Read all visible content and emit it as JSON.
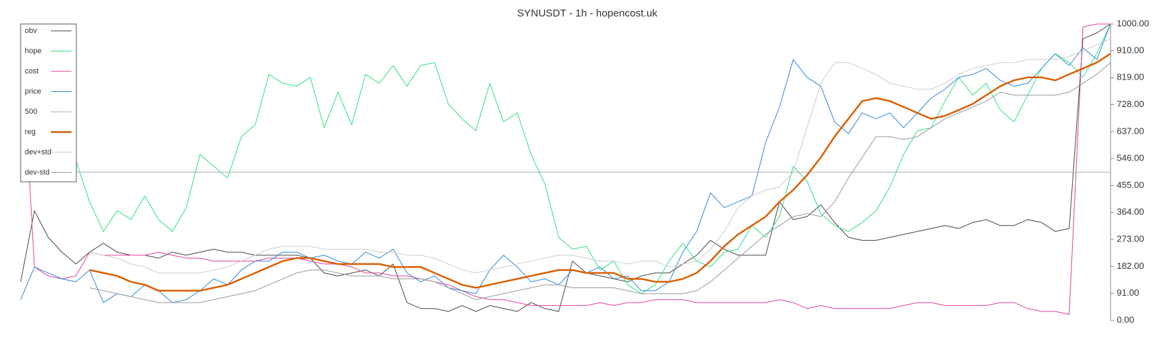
{
  "chart_data": {
    "type": "line",
    "title": "SYNUSDT - 1h - hopencost.uk",
    "ylim": [
      0,
      1000
    ],
    "yticks": [
      {
        "value": 0,
        "label": "0.00"
      },
      {
        "value": 91,
        "label": "91.00"
      },
      {
        "value": 182,
        "label": "182.00"
      },
      {
        "value": 273,
        "label": "273.00"
      },
      {
        "value": 364,
        "label": "364.00"
      },
      {
        "value": 455,
        "label": "455.00"
      },
      {
        "value": 546,
        "label": "546.00"
      },
      {
        "value": 637,
        "label": "637.00"
      },
      {
        "value": 728,
        "label": "728.00"
      },
      {
        "value": 819,
        "label": "819.00"
      },
      {
        "value": 910,
        "label": "910.00"
      },
      {
        "value": 1000,
        "label": "1000.00"
      }
    ],
    "legend": "top-left",
    "series": [
      {
        "name": "obv",
        "color": "#444444",
        "width": 1,
        "values": [
          130,
          370,
          280,
          230,
          190,
          230,
          260,
          230,
          220,
          220,
          210,
          230,
          220,
          230,
          240,
          230,
          230,
          220,
          220,
          220,
          220,
          210,
          160,
          150,
          160,
          170,
          150,
          190,
          60,
          40,
          40,
          30,
          50,
          30,
          50,
          40,
          30,
          60,
          40,
          30,
          200,
          160,
          150,
          140,
          130,
          150,
          160,
          160,
          190,
          220,
          270,
          240,
          220,
          220,
          220,
          400,
          340,
          350,
          390,
          330,
          280,
          270,
          270,
          280,
          290,
          300,
          310,
          320,
          310,
          330,
          340,
          320,
          320,
          340,
          330,
          300,
          310,
          950,
          970,
          1000
        ]
      },
      {
        "name": "hope",
        "color": "#2ee07a",
        "width": 1,
        "values": [
          null,
          null,
          null,
          520,
          540,
          400,
          300,
          370,
          340,
          420,
          340,
          300,
          380,
          560,
          520,
          480,
          620,
          660,
          830,
          800,
          790,
          820,
          650,
          770,
          660,
          830,
          800,
          860,
          790,
          860,
          870,
          730,
          680,
          640,
          800,
          670,
          700,
          560,
          460,
          280,
          240,
          250,
          170,
          200,
          120,
          90,
          120,
          200,
          260,
          200,
          180,
          230,
          240,
          320,
          280,
          350,
          520,
          470,
          360,
          320,
          300,
          330,
          370,
          450,
          560,
          640,
          650,
          740,
          820,
          760,
          800,
          710,
          670,
          760,
          850,
          900,
          870,
          820,
          900,
          1000
        ]
      },
      {
        "name": "cost",
        "color": "#e0409a",
        "width": 1,
        "values": [
          1000,
          180,
          150,
          140,
          150,
          230,
          220,
          220,
          220,
          220,
          230,
          220,
          210,
          210,
          200,
          200,
          200,
          200,
          210,
          210,
          210,
          200,
          190,
          190,
          180,
          160,
          160,
          150,
          150,
          140,
          130,
          120,
          100,
          80,
          70,
          70,
          60,
          50,
          50,
          50,
          50,
          50,
          60,
          50,
          60,
          60,
          70,
          70,
          70,
          60,
          60,
          60,
          60,
          60,
          60,
          70,
          60,
          40,
          50,
          40,
          40,
          40,
          40,
          40,
          50,
          60,
          60,
          50,
          50,
          50,
          50,
          60,
          60,
          40,
          30,
          30,
          20,
          990,
          1000,
          1000
        ]
      },
      {
        "name": "price",
        "color": "#2e86de",
        "width": 1,
        "values": [
          70,
          180,
          160,
          140,
          130,
          170,
          60,
          90,
          80,
          120,
          100,
          60,
          70,
          100,
          140,
          120,
          170,
          200,
          200,
          230,
          230,
          210,
          220,
          200,
          190,
          230,
          210,
          240,
          160,
          130,
          150,
          110,
          100,
          90,
          170,
          220,
          180,
          130,
          140,
          120,
          170,
          160,
          180,
          140,
          150,
          100,
          100,
          130,
          230,
          300,
          430,
          380,
          400,
          420,
          600,
          720,
          880,
          820,
          790,
          670,
          630,
          700,
          680,
          700,
          650,
          700,
          750,
          780,
          820,
          830,
          850,
          810,
          790,
          800,
          850,
          900,
          860,
          920,
          880,
          1000
        ]
      },
      {
        "name": "500",
        "color": "#aaaaaa",
        "width": 1,
        "level": 500
      },
      {
        "name": "reg",
        "color": "#d95f02",
        "width": 2.5,
        "values": [
          null,
          null,
          null,
          null,
          null,
          170,
          160,
          150,
          130,
          120,
          100,
          100,
          100,
          100,
          110,
          120,
          140,
          160,
          180,
          200,
          210,
          210,
          200,
          190,
          190,
          190,
          190,
          180,
          180,
          180,
          160,
          140,
          120,
          110,
          120,
          130,
          140,
          150,
          160,
          170,
          170,
          160,
          160,
          160,
          140,
          140,
          130,
          130,
          140,
          160,
          200,
          250,
          290,
          320,
          350,
          400,
          440,
          490,
          550,
          620,
          680,
          740,
          750,
          740,
          720,
          700,
          680,
          690,
          710,
          730,
          760,
          790,
          810,
          820,
          820,
          810,
          830,
          850,
          870,
          900
        ]
      },
      {
        "name": "dev+std",
        "color": "#cccccc",
        "width": 1,
        "values": [
          null,
          null,
          null,
          null,
          null,
          230,
          220,
          210,
          190,
          180,
          160,
          160,
          160,
          160,
          170,
          180,
          200,
          220,
          240,
          250,
          250,
          250,
          240,
          240,
          240,
          240,
          230,
          230,
          220,
          220,
          210,
          190,
          170,
          160,
          170,
          180,
          190,
          200,
          210,
          220,
          220,
          210,
          200,
          200,
          190,
          200,
          200,
          180,
          190,
          200,
          240,
          300,
          380,
          420,
          440,
          450,
          500,
          650,
          800,
          870,
          870,
          850,
          830,
          800,
          790,
          780,
          780,
          800,
          830,
          850,
          860,
          870,
          870,
          880,
          880,
          880,
          890,
          910,
          930,
          950
        ]
      },
      {
        "name": "dev-std",
        "color": "#999999",
        "width": 1,
        "values": [
          null,
          null,
          null,
          null,
          null,
          110,
          100,
          90,
          80,
          70,
          60,
          60,
          60,
          60,
          70,
          80,
          90,
          100,
          120,
          140,
          160,
          170,
          170,
          160,
          150,
          150,
          150,
          140,
          140,
          140,
          130,
          110,
          90,
          70,
          80,
          90,
          100,
          110,
          120,
          120,
          110,
          110,
          110,
          110,
          100,
          90,
          90,
          90,
          90,
          100,
          130,
          170,
          210,
          250,
          290,
          320,
          350,
          360,
          350,
          400,
          480,
          550,
          620,
          620,
          610,
          620,
          650,
          680,
          700,
          720,
          740,
          770,
          760,
          760,
          760,
          760,
          770,
          800,
          830,
          870
        ]
      }
    ]
  }
}
